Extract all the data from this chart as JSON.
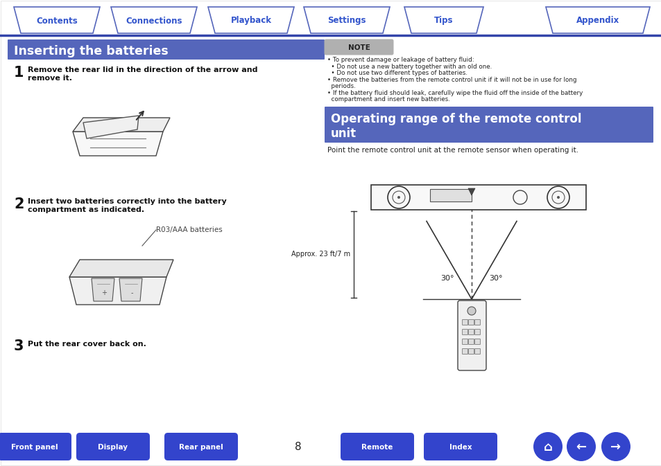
{
  "bg_color": "#ffffff",
  "tab_items": [
    "Contents",
    "Connections",
    "Playback",
    "Settings",
    "Tips",
    "Appendix"
  ],
  "tab_border_color": "#5566bb",
  "tab_text_color": "#3355cc",
  "header_line_color": "#3344aa",
  "section1_title": "Inserting the batteries",
  "section1_bg": "#5566bb",
  "section1_text_color": "#ffffff",
  "section2_bg": "#5566bb",
  "section2_text_color": "#ffffff",
  "note_bg": "#bbbbbb",
  "note_label": "NOTE",
  "step1_num": "1",
  "step1_text": "Remove the rear lid in the direction of the arrow and\nremove it.",
  "step2_num": "2",
  "step2_text": "Insert two batteries correctly into the battery\ncompartment as indicated.",
  "step2_label": "R03/AAA batteries",
  "step3_num": "3",
  "step3_text": "Put the rear cover back on.",
  "note_line1": "• To prevent damage or leakage of battery fluid:",
  "note_line2": "  • Do not use a new battery together with an old one.",
  "note_line3": "  • Do not use two different types of batteries.",
  "note_line4": "• Remove the batteries from the remote control unit if it will not be in use for long",
  "note_line4b": "  periods.",
  "note_line5": "• If the battery fluid should leak, carefully wipe the fluid off the inside of the battery",
  "note_line5b": "  compartment and insert new batteries.",
  "range_text": "Point the remote control unit at the remote sensor when operating it.",
  "approx_label": "Approx. 23 ft/7 m",
  "angle_label_left": "30°",
  "angle_label_right": "30°",
  "bottom_buttons": [
    "Front panel",
    "Display",
    "Rear panel",
    "Remote",
    "Index"
  ],
  "bottom_btn_color": "#3344cc",
  "bottom_btn_text_color": "#ffffff",
  "page_num": "8"
}
